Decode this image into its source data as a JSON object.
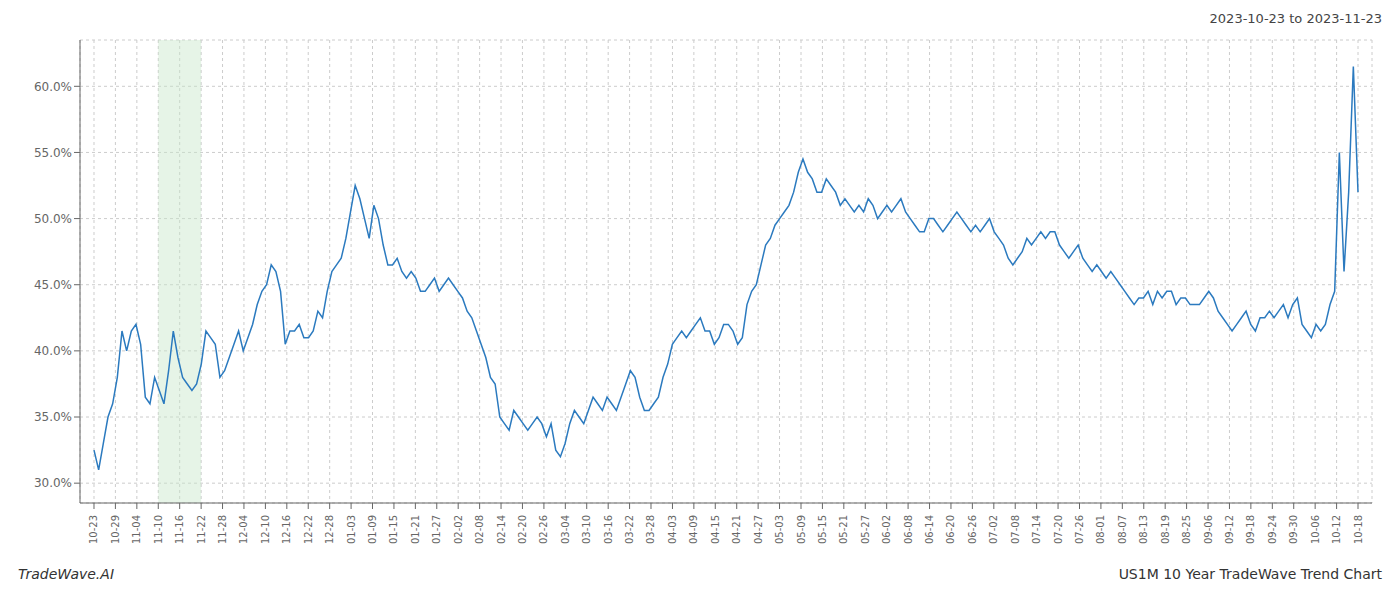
{
  "chart_data": {
    "type": "line",
    "title": "2023-10-23 to 2023-11-23",
    "annotations": [
      "TradeWave.AI",
      "US1M 10 Year TradeWave Trend Chart"
    ],
    "color": "#2b7abf",
    "grid": true,
    "shaded": {
      "from": "11-10",
      "to": "11-22",
      "color": "#c8e6c9"
    },
    "xlim": [
      -3,
      274
    ],
    "xticks": [
      {
        "value": 0,
        "label": "10-23"
      },
      {
        "value": 4.59,
        "label": "10-29"
      },
      {
        "value": 9.19,
        "label": "11-04"
      },
      {
        "value": 13.78,
        "label": "11-10"
      },
      {
        "value": 18.37,
        "label": "11-16"
      },
      {
        "value": 22.97,
        "label": "11-22"
      },
      {
        "value": 27.56,
        "label": "11-28"
      },
      {
        "value": 32.15,
        "label": "12-04"
      },
      {
        "value": 36.75,
        "label": "12-10"
      },
      {
        "value": 41.34,
        "label": "12-16"
      },
      {
        "value": 45.93,
        "label": "12-22"
      },
      {
        "value": 50.53,
        "label": "12-28"
      },
      {
        "value": 55.12,
        "label": "01-03"
      },
      {
        "value": 59.71,
        "label": "01-09"
      },
      {
        "value": 64.31,
        "label": "01-15"
      },
      {
        "value": 68.9,
        "label": "01-21"
      },
      {
        "value": 73.49,
        "label": "01-27"
      },
      {
        "value": 78.08,
        "label": "02-02"
      },
      {
        "value": 82.68,
        "label": "02-08"
      },
      {
        "value": 87.27,
        "label": "02-14"
      },
      {
        "value": 91.86,
        "label": "02-20"
      },
      {
        "value": 96.46,
        "label": "02-26"
      },
      {
        "value": 101.05,
        "label": "03-04"
      },
      {
        "value": 105.64,
        "label": "03-10"
      },
      {
        "value": 110.24,
        "label": "03-16"
      },
      {
        "value": 114.83,
        "label": "03-22"
      },
      {
        "value": 119.42,
        "label": "03-28"
      },
      {
        "value": 124.02,
        "label": "04-03"
      },
      {
        "value": 128.61,
        "label": "04-09"
      },
      {
        "value": 133.2,
        "label": "04-15"
      },
      {
        "value": 137.8,
        "label": "04-21"
      },
      {
        "value": 142.39,
        "label": "04-27"
      },
      {
        "value": 146.98,
        "label": "05-03"
      },
      {
        "value": 151.58,
        "label": "05-09"
      },
      {
        "value": 156.17,
        "label": "05-15"
      },
      {
        "value": 160.76,
        "label": "05-21"
      },
      {
        "value": 165.36,
        "label": "05-27"
      },
      {
        "value": 169.95,
        "label": "06-02"
      },
      {
        "value": 174.54,
        "label": "06-08"
      },
      {
        "value": 179.14,
        "label": "06-14"
      },
      {
        "value": 183.73,
        "label": "06-20"
      },
      {
        "value": 188.32,
        "label": "06-26"
      },
      {
        "value": 192.92,
        "label": "07-02"
      },
      {
        "value": 197.51,
        "label": "07-08"
      },
      {
        "value": 202.1,
        "label": "07-14"
      },
      {
        "value": 206.69,
        "label": "07-20"
      },
      {
        "value": 211.29,
        "label": "07-26"
      },
      {
        "value": 215.88,
        "label": "08-01"
      },
      {
        "value": 220.47,
        "label": "08-07"
      },
      {
        "value": 225.07,
        "label": "08-13"
      },
      {
        "value": 229.66,
        "label": "08-19"
      },
      {
        "value": 234.25,
        "label": "08-25"
      },
      {
        "value": 238.85,
        "label": "09-06"
      },
      {
        "value": 243.44,
        "label": "09-12"
      },
      {
        "value": 248.03,
        "label": "09-18"
      },
      {
        "value": 252.63,
        "label": "09-24"
      },
      {
        "value": 257.22,
        "label": "09-30"
      },
      {
        "value": 261.81,
        "label": "10-06"
      },
      {
        "value": 266.41,
        "label": "10-12"
      },
      {
        "value": 271,
        "label": "10-18"
      }
    ],
    "ylim": [
      28.5,
      63.5
    ],
    "yticks": [
      {
        "value": 30.0,
        "label": "30.0%"
      },
      {
        "value": 35.0,
        "label": "35.0%"
      },
      {
        "value": 40.0,
        "label": "40.0%"
      },
      {
        "value": 45.0,
        "label": "45.0%"
      },
      {
        "value": 50.0,
        "label": "50.0%"
      },
      {
        "value": 55.0,
        "label": "55.0%"
      },
      {
        "value": 60.0,
        "label": "60.0%"
      }
    ],
    "values": [
      32.5,
      31.0,
      33.0,
      35.0,
      36.0,
      38.0,
      41.5,
      40.0,
      41.5,
      42.0,
      40.5,
      36.5,
      36.0,
      38.0,
      37.0,
      36.0,
      38.5,
      41.5,
      39.5,
      38.0,
      37.5,
      37.0,
      37.5,
      39.0,
      41.5,
      41.0,
      40.5,
      38.0,
      38.5,
      39.5,
      40.5,
      41.5,
      40.0,
      41.0,
      42.0,
      43.5,
      44.5,
      45.0,
      46.5,
      46.0,
      44.5,
      40.5,
      41.5,
      41.5,
      42.0,
      41.0,
      41.0,
      41.5,
      43.0,
      42.5,
      44.5,
      46.0,
      46.5,
      47.0,
      48.5,
      50.5,
      52.5,
      51.5,
      50.0,
      48.5,
      51.0,
      50.0,
      48.0,
      46.5,
      46.5,
      47.0,
      46.0,
      45.5,
      46.0,
      45.5,
      44.5,
      44.5,
      45.0,
      45.5,
      44.5,
      45.0,
      45.5,
      45.0,
      44.5,
      44.0,
      43.0,
      42.5,
      41.5,
      40.5,
      39.5,
      38.0,
      37.5,
      35.0,
      34.5,
      34.0,
      35.5,
      35.0,
      34.5,
      34.0,
      34.5,
      35.0,
      34.5,
      33.5,
      34.5,
      32.5,
      32.0,
      33.0,
      34.5,
      35.5,
      35.0,
      34.5,
      35.5,
      36.5,
      36.0,
      35.5,
      36.5,
      36.0,
      35.5,
      36.5,
      37.5,
      38.5,
      38.0,
      36.5,
      35.5,
      35.5,
      36.0,
      36.5,
      38.0,
      39.0,
      40.5,
      41.0,
      41.5,
      41.0,
      41.5,
      42.0,
      42.5,
      41.5,
      41.5,
      40.5,
      41.0,
      42.0,
      42.0,
      41.5,
      40.5,
      41.0,
      43.5,
      44.5,
      45.0,
      46.5,
      48.0,
      48.5,
      49.5,
      50.0,
      50.5,
      51.0,
      52.0,
      53.5,
      54.5,
      53.5,
      53.0,
      52.0,
      52.0,
      53.0,
      52.5,
      52.0,
      51.0,
      51.5,
      51.0,
      50.5,
      51.0,
      50.5,
      51.5,
      51.0,
      50.0,
      50.5,
      51.0,
      50.5,
      51.0,
      51.5,
      50.5,
      50.0,
      49.5,
      49.0,
      49.0,
      50.0,
      50.0,
      49.5,
      49.0,
      49.5,
      50.0,
      50.5,
      50.0,
      49.5,
      49.0,
      49.5,
      49.0,
      49.5,
      50.0,
      49.0,
      48.5,
      48.0,
      47.0,
      46.5,
      47.0,
      47.5,
      48.5,
      48.0,
      48.5,
      49.0,
      48.5,
      49.0,
      49.0,
      48.0,
      47.5,
      47.0,
      47.5,
      48.0,
      47.0,
      46.5,
      46.0,
      46.5,
      46.0,
      45.5,
      46.0,
      45.5,
      45.0,
      44.5,
      44.0,
      43.5,
      44.0,
      44.0,
      44.5,
      43.5,
      44.5,
      44.0,
      44.5,
      44.5,
      43.5,
      44.0,
      44.0,
      43.5,
      43.5,
      43.5,
      44.0,
      44.5,
      44.0,
      43.0,
      42.5,
      42.0,
      41.5,
      42.0,
      42.5,
      43.0,
      42.0,
      41.5,
      42.5,
      42.5,
      43.0,
      42.5,
      43.0,
      43.5,
      42.5,
      43.5,
      44.0,
      42.0,
      41.5,
      41.0,
      42.0,
      41.5,
      42.0,
      43.5,
      44.5,
      55.0,
      46.0,
      52.0,
      61.5,
      52.0
    ]
  }
}
